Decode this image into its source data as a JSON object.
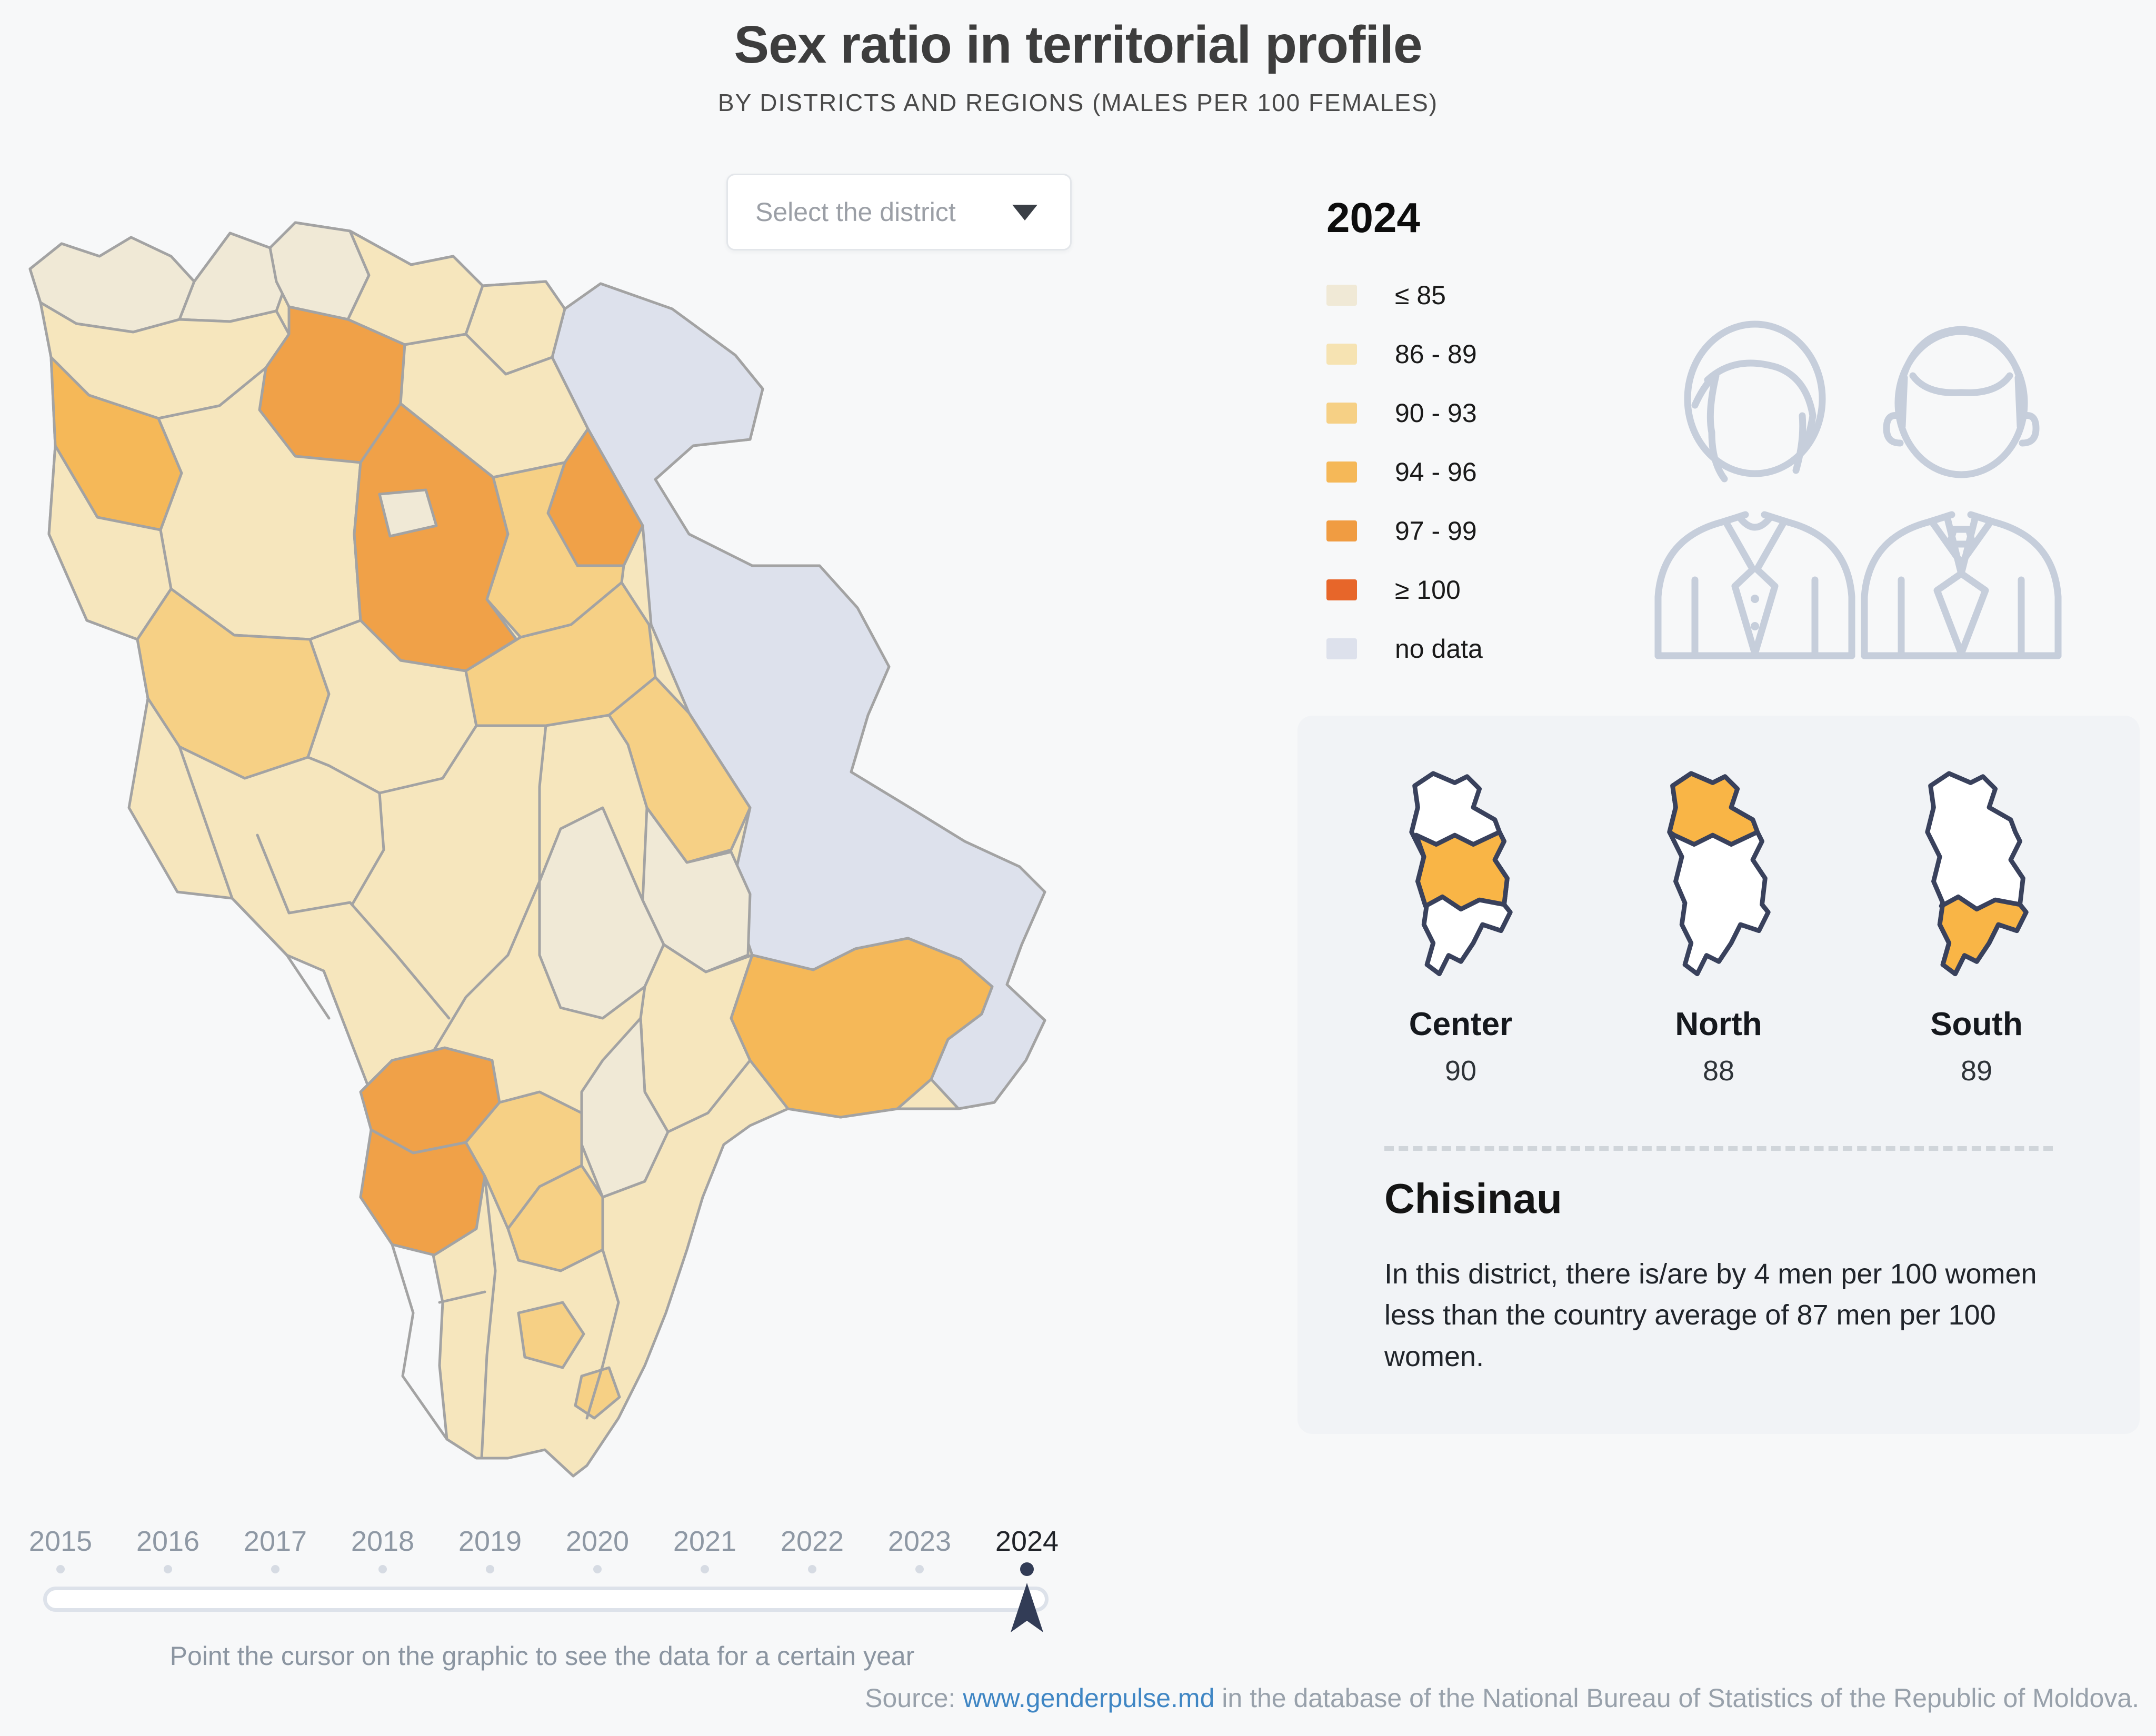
{
  "header": {
    "title": "Sex ratio in territorial profile",
    "subtitle": "BY DISTRICTS AND REGIONS (MALES PER 100 FEMALES)"
  },
  "controls": {
    "district_select_placeholder": "Select the district"
  },
  "legend": {
    "year": "2024",
    "items": [
      {
        "label": "≤ 85",
        "color": "#f0e9d6"
      },
      {
        "label": "86 - 89",
        "color": "#f6e3b2"
      },
      {
        "label": "90 - 93",
        "color": "#f6d085"
      },
      {
        "label": "94 - 96",
        "color": "#f5b858"
      },
      {
        "label": "97 - 99",
        "color": "#f09c42"
      },
      {
        "label": "≥ 100",
        "color": "#e7662a"
      },
      {
        "label": "no data",
        "color": "#dde1ec"
      }
    ]
  },
  "map": {
    "palette": {
      "c1": "#f0e9d6",
      "c2": "#f6e6bd",
      "c3": "#f6d085",
      "c4": "#f5b858",
      "c5": "#f0a148",
      "nd": "#dde1ec"
    },
    "stroke": "#a3a3a3"
  },
  "regions": {
    "outline_color": "#39415c",
    "highlight_color": "#f9b546",
    "cards": [
      {
        "name": "Center",
        "value": "90"
      },
      {
        "name": "North",
        "value": "88"
      },
      {
        "name": "South",
        "value": "89"
      }
    ]
  },
  "district_info": {
    "name": "Chisinau",
    "description": "In this district, there is/are by 4 men per 100 women less than the country average of 87 men per 100 women."
  },
  "timeline": {
    "years": [
      "2015",
      "2016",
      "2017",
      "2018",
      "2019",
      "2020",
      "2021",
      "2022",
      "2023",
      "2024"
    ],
    "active_year": "2024",
    "marker_color": "#323c56",
    "hint": "Point the cursor on the graphic to see the data for a certain year"
  },
  "source": {
    "prefix": "Source: ",
    "link": "www.genderpulse.md",
    "suffix": " in the database of the National Bureau of Statistics of the Republic of Moldova."
  },
  "icons": {
    "person_line_color": "#c6cedb"
  }
}
